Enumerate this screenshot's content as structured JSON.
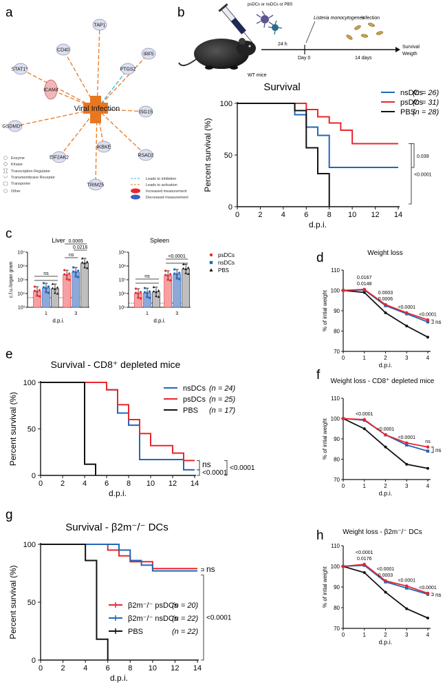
{
  "panel_letters": [
    "a",
    "b",
    "c",
    "d",
    "e",
    "f",
    "g",
    "h"
  ],
  "colors": {
    "red": "#e8262c",
    "blue": "#2166b8",
    "black": "#111111",
    "orange": "#e87722",
    "cyan": "#3ab0d8",
    "light_red": "#f6a0a2",
    "light_blue": "#8ea8d8",
    "light_gray": "#bfbfbf"
  },
  "network": {
    "center": "Viral Infection",
    "nodes": [
      "TAP1",
      "CD40",
      "PTGS2",
      "IRF5",
      "STAT1*",
      "ICAM4",
      "ISG15",
      "GSDMD*",
      "EIF2AK2",
      "IKBKE",
      "RSAD2",
      "TRIM25"
    ],
    "legend_shapes": [
      "Enzyme",
      "Kinase",
      "Transcription Regulator",
      "Transmembrane Receptor",
      "Transporter",
      "Other"
    ],
    "legend_edges": [
      "Leads to inhibition",
      "Leads to activation",
      "Increased measurement",
      "Decreased measurement"
    ]
  },
  "schematic": {
    "injection": "psDCs or nsDCs or PBS",
    "mouse": "WT mice",
    "gap": "24 h",
    "infection_line1": "Listeria monocytogenes",
    "infection_line2": "infection",
    "day0": "Day 0",
    "days14": "14 days",
    "readout1": "Survival",
    "readout2": "Weigth"
  },
  "chart_data": [
    {
      "id": "b",
      "type": "line",
      "style": "step",
      "title": "Survival",
      "xlabel": "d.p.i.",
      "ylabel": "Percent survival (%)",
      "xlim": [
        0,
        14
      ],
      "ylim": [
        0,
        100
      ],
      "xticks": [
        0,
        2,
        4,
        6,
        8,
        10,
        12,
        14
      ],
      "yticks": [
        0,
        50,
        100
      ],
      "series": [
        {
          "name": "nsDCs",
          "n": "(n = 26)",
          "color": "blue",
          "x": [
            0,
            4,
            5,
            6,
            7,
            8,
            14
          ],
          "y": [
            100,
            100,
            89,
            77,
            69,
            38,
            38
          ]
        },
        {
          "name": "psDCs",
          "n": "(n = 31)",
          "color": "red",
          "x": [
            0,
            5,
            6,
            7,
            8,
            9,
            10,
            14
          ],
          "y": [
            100,
            100,
            94,
            87,
            81,
            74,
            61,
            61
          ]
        },
        {
          "name": "PBS",
          "n": "(n = 28)",
          "color": "black",
          "x": [
            0,
            4,
            5,
            6,
            7,
            8
          ],
          "y": [
            100,
            100,
            93,
            57,
            32,
            0
          ]
        }
      ],
      "stats": [
        "0.039",
        "<0.0001"
      ]
    },
    {
      "id": "c-liver",
      "type": "bar",
      "title": "Liver",
      "xlabel": "d.p.i.",
      "ylabel": "c.f.u./organ gram",
      "yscale": "log",
      "ylim": [
        1000,
        10000000
      ],
      "ytick_labels": [
        "10³",
        "10⁴",
        "10⁵",
        "10⁶",
        "10⁷"
      ],
      "categories": [
        "1",
        "3"
      ],
      "series": [
        {
          "name": "psDCs",
          "color": "red",
          "values": [
            14000,
            220000
          ]
        },
        {
          "name": "nsDCs",
          "color": "blue",
          "values": [
            25000,
            350000
          ]
        },
        {
          "name": "PBS",
          "color": "black",
          "values": [
            22000,
            1600000
          ]
        }
      ],
      "detection_limit": 5000,
      "stats": [
        "ns",
        "ns",
        "0.0216",
        "0.0065"
      ]
    },
    {
      "id": "c-spleen",
      "type": "bar",
      "title": "Spleen",
      "xlabel": "d.p.i.",
      "yscale": "log",
      "ylim": [
        100000,
        1000000000
      ],
      "ytick_labels": [
        "10⁵",
        "10⁶",
        "10⁷",
        "10⁸",
        "10⁹"
      ],
      "categories": [
        "1",
        "3"
      ],
      "series": [
        {
          "name": "psDCs",
          "color": "red",
          "values": [
            1000000,
            20000000
          ]
        },
        {
          "name": "nsDCs",
          "color": "blue",
          "values": [
            1100000,
            25000000
          ]
        },
        {
          "name": "PBS",
          "color": "black",
          "values": [
            1300000,
            60000000
          ]
        }
      ],
      "detection_limit": 200000,
      "stats": [
        "ns",
        "<0.0001"
      ],
      "legend": [
        "psDCs",
        "nsDCs",
        "PBS"
      ]
    },
    {
      "id": "d",
      "type": "line",
      "style": "linear",
      "title": "Weight loss",
      "xlabel": "d.p.i.",
      "ylabel": "% of intial weight",
      "xlim": [
        0,
        4
      ],
      "ylim": [
        70,
        110
      ],
      "xticks": [
        0,
        1,
        2,
        3,
        4
      ],
      "yticks": [
        70,
        80,
        90,
        100,
        110
      ],
      "series": [
        {
          "name": "psDCs",
          "color": "red",
          "x": [
            0,
            1,
            2,
            3,
            4
          ],
          "y": [
            100,
            100.5,
            93,
            89,
            85.5
          ]
        },
        {
          "name": "nsDCs",
          "color": "blue",
          "x": [
            0,
            1,
            2,
            3,
            4
          ],
          "y": [
            100,
            100.2,
            92.5,
            88.5,
            84.5
          ]
        },
        {
          "name": "PBS",
          "color": "black",
          "x": [
            0,
            1,
            2,
            3,
            4
          ],
          "y": [
            100,
            99,
            89,
            82.5,
            77
          ]
        }
      ],
      "annotations": [
        {
          "x": 1,
          "lines": [
            "0.0167",
            "0.0148"
          ]
        },
        {
          "x": 2,
          "lines": [
            "0.0003",
            "0.0006"
          ]
        },
        {
          "x": 3,
          "lines": [
            "<0.0001"
          ]
        },
        {
          "x": 4,
          "lines": [
            "<0.0001"
          ]
        }
      ],
      "side_stat": "ns"
    },
    {
      "id": "e",
      "type": "line",
      "style": "step",
      "title": "Survival - CD8⁺ depleted mice",
      "xlabel": "d.p.i.",
      "ylabel": "Percent survival (%)",
      "xlim": [
        0,
        14
      ],
      "ylim": [
        0,
        100
      ],
      "xticks": [
        0,
        2,
        4,
        6,
        8,
        10,
        12,
        14
      ],
      "yticks": [
        0,
        50,
        100
      ],
      "series": [
        {
          "name": "nsDCs",
          "n": "(n = 24)",
          "color": "blue",
          "x": [
            0,
            5,
            6,
            7,
            8,
            9,
            13,
            14
          ],
          "y": [
            100,
            100,
            92,
            67,
            54,
            17,
            6,
            6
          ]
        },
        {
          "name": "psDCs",
          "n": "(n = 25)",
          "color": "red",
          "x": [
            0,
            5,
            6,
            7,
            8,
            9,
            10,
            12,
            13,
            14
          ],
          "y": [
            100,
            100,
            92,
            76,
            60,
            45,
            32,
            24,
            16,
            16
          ]
        },
        {
          "name": "PBS",
          "n": "(n = 17)",
          "color": "black",
          "x": [
            0,
            4,
            5
          ],
          "y": [
            100,
            12,
            0
          ]
        }
      ],
      "stats": [
        "ns",
        "<0.0001",
        "<0.0001"
      ]
    },
    {
      "id": "f",
      "type": "line",
      "style": "linear",
      "title": "Weight loss - CD8⁺ depleted mice",
      "xlabel": "d.p.i.",
      "ylabel": "% of intial weight",
      "xlim": [
        0,
        4
      ],
      "ylim": [
        70,
        110
      ],
      "xticks": [
        0,
        1,
        2,
        3,
        4
      ],
      "yticks": [
        70,
        80,
        90,
        100,
        110
      ],
      "series": [
        {
          "name": "psDCs",
          "color": "red",
          "x": [
            0,
            1,
            2,
            3,
            4
          ],
          "y": [
            100,
            99.5,
            92,
            88,
            86
          ]
        },
        {
          "name": "nsDCs",
          "color": "blue",
          "x": [
            0,
            1,
            2,
            3,
            4
          ],
          "y": [
            100,
            99.2,
            92,
            87,
            84
          ]
        },
        {
          "name": "PBS",
          "color": "black",
          "x": [
            0,
            1,
            2,
            3,
            4
          ],
          "y": [
            100,
            95,
            86,
            77.5,
            75.5
          ]
        }
      ],
      "annotations": [
        {
          "x": 1,
          "lines": [
            "<0.0001"
          ]
        },
        {
          "x": 2,
          "lines": [
            "<0.0001"
          ]
        },
        {
          "x": 3,
          "lines": [
            "<0.0001"
          ]
        },
        {
          "x": 4,
          "lines": [
            "ns"
          ]
        }
      ],
      "side_stat": "ns"
    },
    {
      "id": "g",
      "type": "line",
      "style": "step",
      "title": "Survival - β2m⁻/⁻ DCs",
      "xlabel": "d.p.i.",
      "ylabel": "Percent survival (%)",
      "xlim": [
        0,
        14
      ],
      "ylim": [
        0,
        100
      ],
      "xticks": [
        0,
        2,
        4,
        6,
        8,
        10,
        12,
        14
      ],
      "yticks": [
        0,
        50,
        100
      ],
      "series": [
        {
          "name": "β2m⁻/⁻ psDCs",
          "n": "(n = 20)",
          "color": "red",
          "x": [
            0,
            5,
            6,
            7,
            8,
            10,
            14
          ],
          "y": [
            100,
            100,
            95,
            90,
            85,
            79,
            79
          ]
        },
        {
          "name": "β2m⁻/⁻ nsDCs",
          "n": "(n = 22)",
          "color": "blue",
          "x": [
            0,
            5,
            7,
            8,
            9,
            10,
            14
          ],
          "y": [
            100,
            100,
            95,
            86,
            82,
            77,
            77
          ]
        },
        {
          "name": "PBS",
          "n": "(n = 22)",
          "color": "black",
          "x": [
            0,
            4,
            5,
            6
          ],
          "y": [
            100,
            86,
            18,
            0
          ]
        }
      ],
      "stats": [
        "ns",
        "<0.0001"
      ]
    },
    {
      "id": "h",
      "type": "line",
      "style": "linear",
      "title": "Weight loss - β2m⁻/⁻ DCs",
      "xlabel": "d.p.i.",
      "ylabel": "% of intial weight",
      "xlim": [
        0,
        4
      ],
      "ylim": [
        70,
        110
      ],
      "xticks": [
        0,
        1,
        2,
        3,
        4
      ],
      "yticks": [
        70,
        80,
        90,
        100,
        110
      ],
      "series": [
        {
          "name": "psDCs",
          "color": "red",
          "x": [
            0,
            1,
            2,
            3,
            4
          ],
          "y": [
            100,
            101,
            93,
            90.5,
            87
          ]
        },
        {
          "name": "nsDCs",
          "color": "blue",
          "x": [
            0,
            1,
            2,
            3,
            4
          ],
          "y": [
            100,
            100.5,
            92.5,
            89.5,
            86.5
          ]
        },
        {
          "name": "PBS",
          "color": "black",
          "x": [
            0,
            1,
            2,
            3,
            4
          ],
          "y": [
            100,
            97,
            87.5,
            79.5,
            75
          ]
        }
      ],
      "annotations": [
        {
          "x": 1,
          "lines": [
            "<0.0001",
            "0.0176"
          ]
        },
        {
          "x": 2,
          "lines": [
            "<0.0001",
            "0.0003"
          ]
        },
        {
          "x": 3,
          "lines": [
            "<0.0001"
          ]
        },
        {
          "x": 4,
          "lines": [
            "<0.0001"
          ]
        }
      ],
      "side_stat": "ns"
    }
  ]
}
